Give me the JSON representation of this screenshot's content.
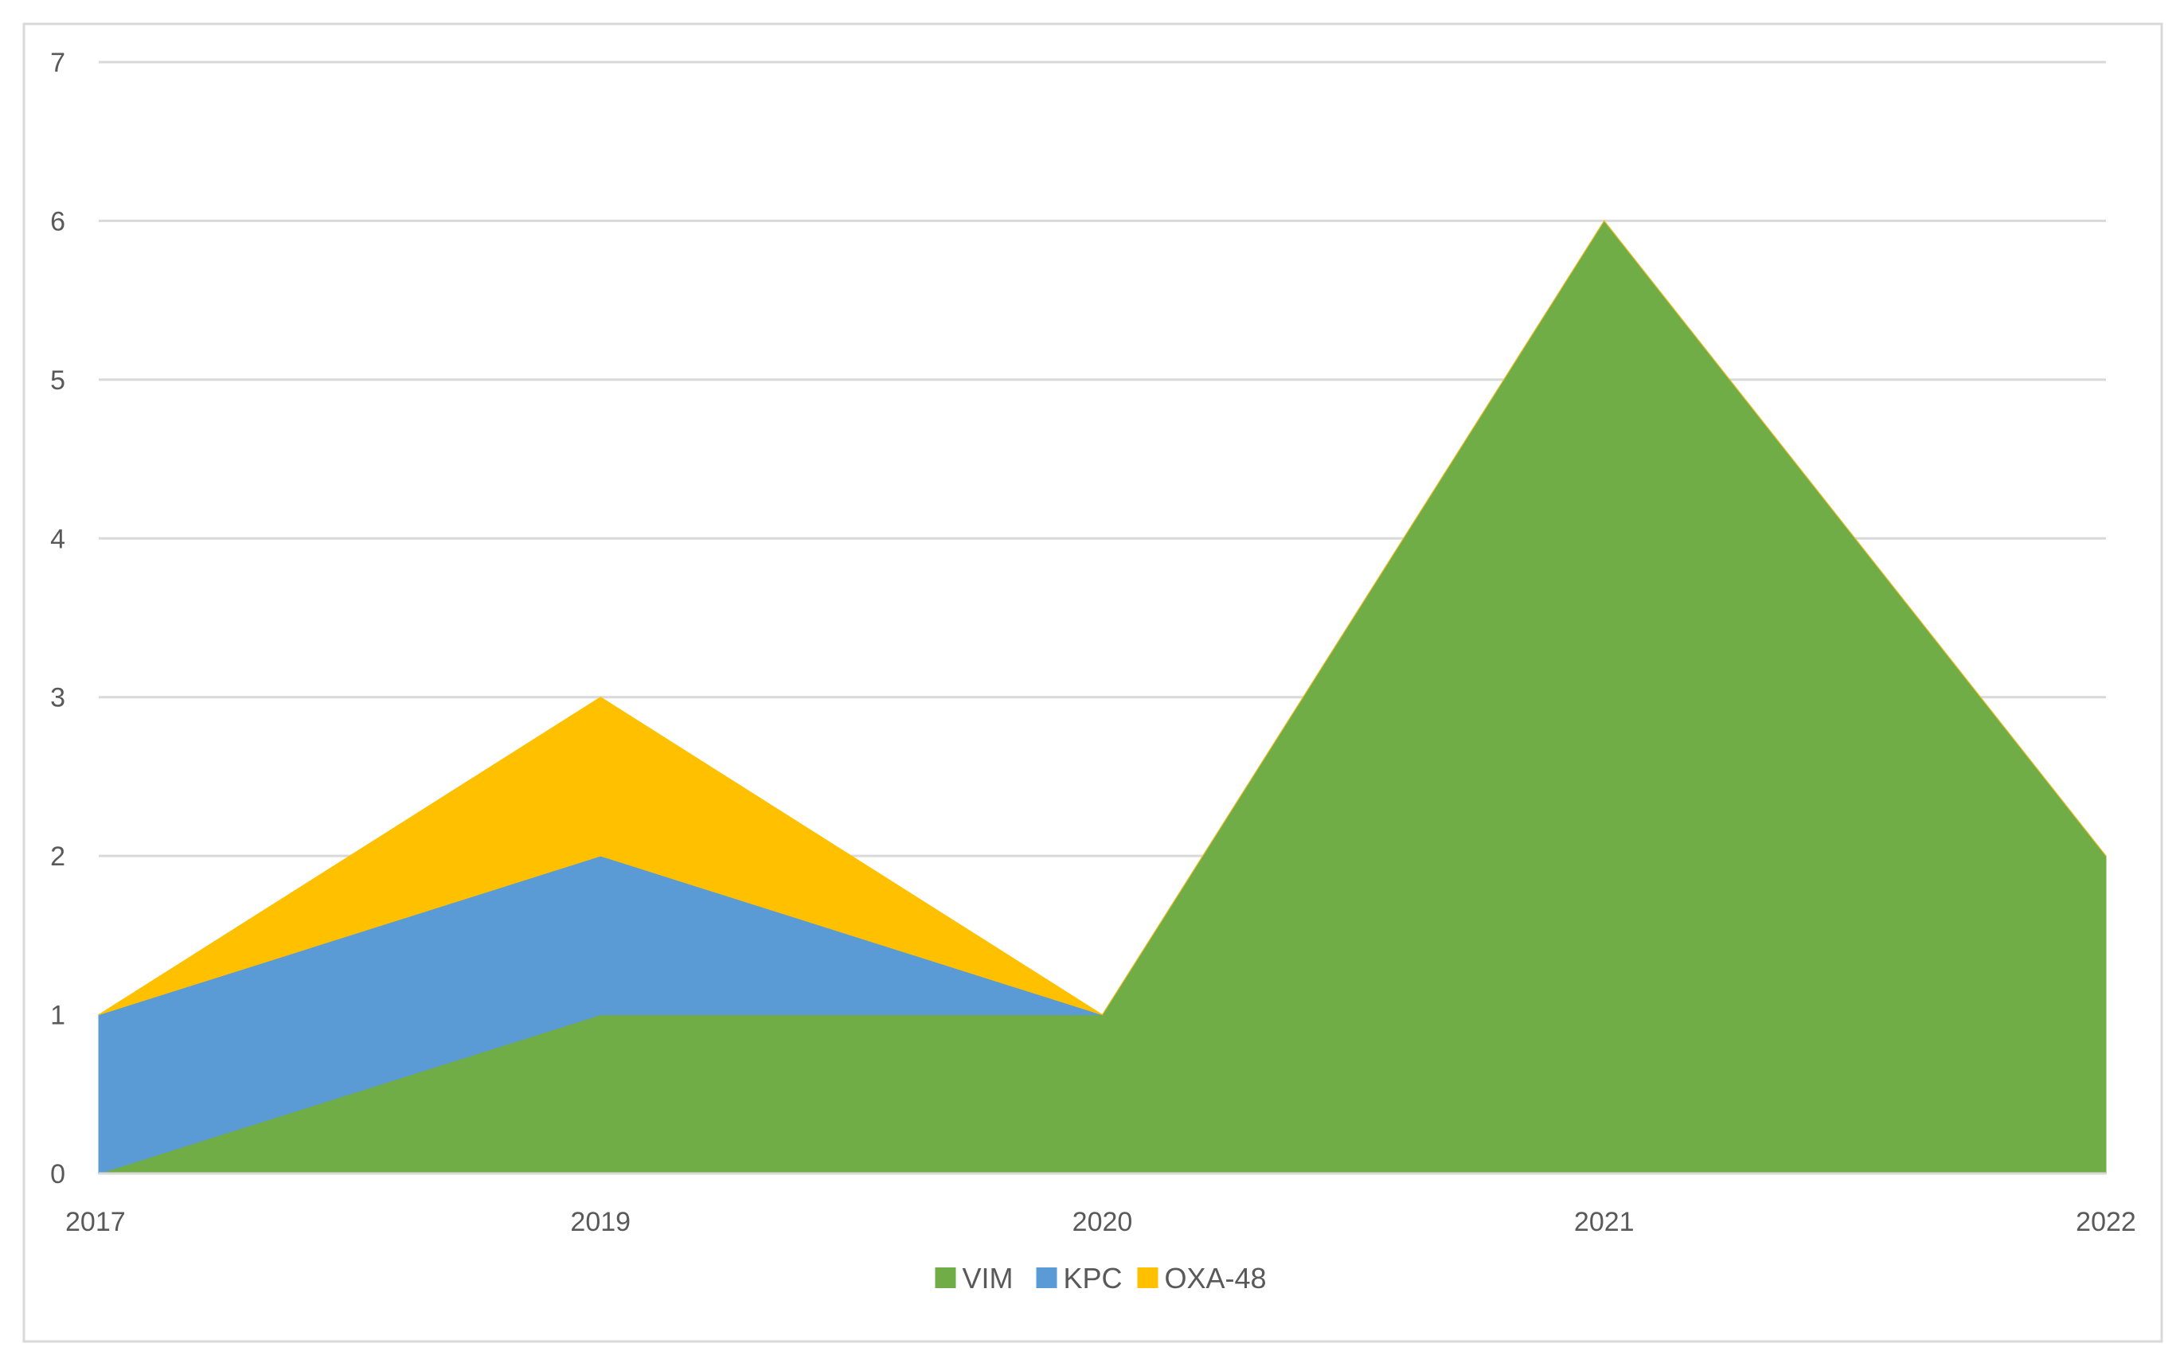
{
  "chart_data": {
    "type": "area",
    "stacked": true,
    "categories": [
      "2017",
      "2019",
      "2020",
      "2021",
      "2022"
    ],
    "series": [
      {
        "name": "VIM",
        "values": [
          0,
          1,
          1,
          6,
          2
        ],
        "color": "#70AD47"
      },
      {
        "name": "KPC",
        "values": [
          1,
          1,
          0,
          0,
          0
        ],
        "color": "#5B9BD5"
      },
      {
        "name": "OXA-48",
        "values": [
          0,
          1,
          0,
          0,
          0
        ],
        "color": "#FFC000"
      }
    ],
    "title": "",
    "xlabel": "",
    "ylabel": "",
    "ylim": [
      0,
      7
    ],
    "yticks": [
      "0",
      "1",
      "2",
      "3",
      "4",
      "5",
      "6",
      "7"
    ],
    "grid": true,
    "legend_position": "bottom-center",
    "border_color": "#D9D9D9",
    "grid_color": "#D9D9D9"
  }
}
